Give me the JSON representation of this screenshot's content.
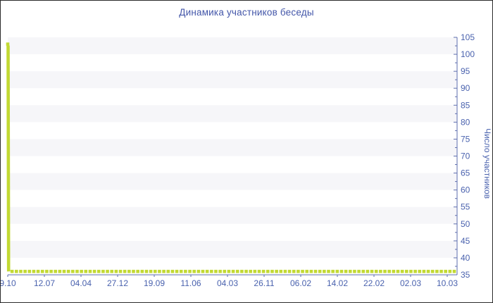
{
  "frame": {
    "background": "#ffffff",
    "border_color": "#2b2b2b"
  },
  "chart_data": {
    "type": "line",
    "title": "Динамика участников беседы",
    "xlabel": "",
    "ylabel": "Число участников",
    "ylabel_orientation": "vertical-right",
    "x_tick_labels": [
      "9.10",
      "12.07",
      "04.04",
      "27.12",
      "19.09",
      "11.06",
      "04.03",
      "26.11",
      "06.02",
      "14.02",
      "22.02",
      "02.03",
      "10.03"
    ],
    "y_tick_labels": [
      35,
      40,
      45,
      50,
      55,
      60,
      65,
      70,
      75,
      80,
      85,
      90,
      95,
      100,
      105
    ],
    "ylim": [
      35,
      105
    ],
    "y_major_step": 5,
    "y_minor_step": 2.5,
    "y_axis_side": "right",
    "grid": "alternating-horizontal-bands",
    "legend_position": "none",
    "series": [
      {
        "name": "Число участников",
        "marker": "square",
        "line_visible_only_on_drop": true,
        "color": "#c2d933",
        "num_points": 104,
        "first_value": 103,
        "flat_value": 36
      }
    ],
    "colors": {
      "band_gray": "#f6f6f9",
      "band_white": "#ffffff",
      "axis": "#5e6eae",
      "tick_text": "#4a62ae",
      "title_text": "#4356a9",
      "series_green": "#c2d933"
    }
  }
}
